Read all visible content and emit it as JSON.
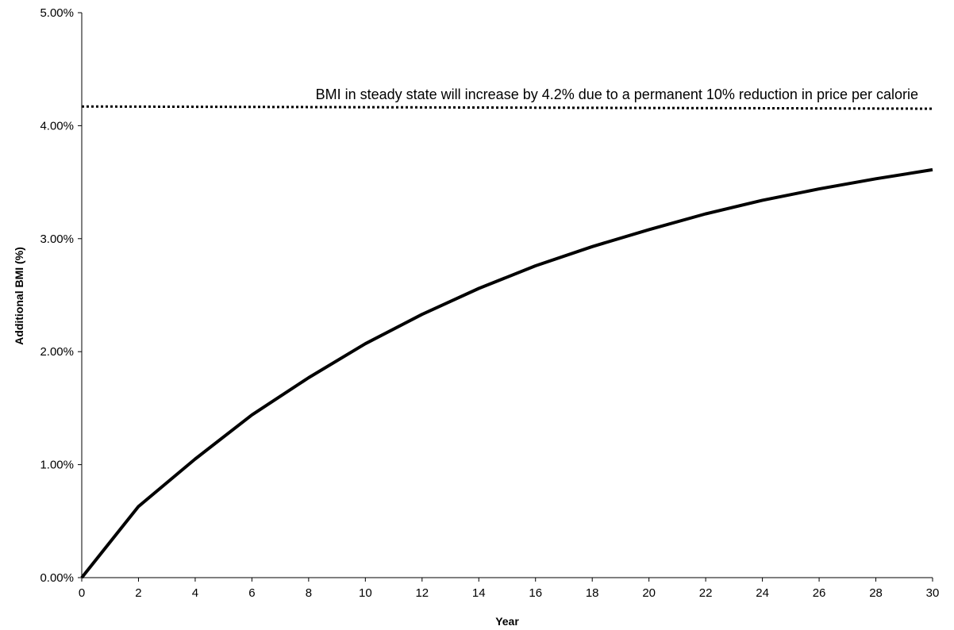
{
  "chart_data": {
    "type": "line",
    "title": "",
    "xlabel": "Year",
    "ylabel": "Additional BMI (%)",
    "xlim": [
      0,
      30
    ],
    "ylim": [
      0,
      5
    ],
    "x_ticks": [
      0,
      2,
      4,
      6,
      8,
      10,
      12,
      14,
      16,
      18,
      20,
      22,
      24,
      26,
      28,
      30
    ],
    "x_tick_labels": [
      "0",
      "2",
      "4",
      "6",
      "8",
      "10",
      "12",
      "14",
      "16",
      "18",
      "20",
      "22",
      "24",
      "26",
      "28",
      "30"
    ],
    "y_ticks": [
      0,
      1,
      2,
      3,
      4,
      5
    ],
    "y_tick_labels": [
      "0.00%",
      "1.00%",
      "2.00%",
      "3.00%",
      "4.00%",
      "5.00%"
    ],
    "grid": false,
    "legend": "none",
    "series": [
      {
        "style": "solid",
        "color": "#000000",
        "x": [
          0,
          2,
          4,
          6,
          8,
          10,
          12,
          14,
          16,
          18,
          20,
          22,
          24,
          26,
          28,
          30
        ],
        "values": [
          0.0,
          0.63,
          1.05,
          1.44,
          1.77,
          2.07,
          2.33,
          2.56,
          2.76,
          2.93,
          3.08,
          3.22,
          3.34,
          3.44,
          3.53,
          3.61
        ]
      },
      {
        "style": "dotted",
        "color": "#000000",
        "x": [
          0,
          30
        ],
        "values": [
          4.17,
          4.15
        ]
      }
    ],
    "annotations": [
      {
        "text": "BMI in steady state will increase by 4.2% due to a permanent 10% reduction in price per calorie",
        "x": 30,
        "y": 4.2
      }
    ]
  }
}
